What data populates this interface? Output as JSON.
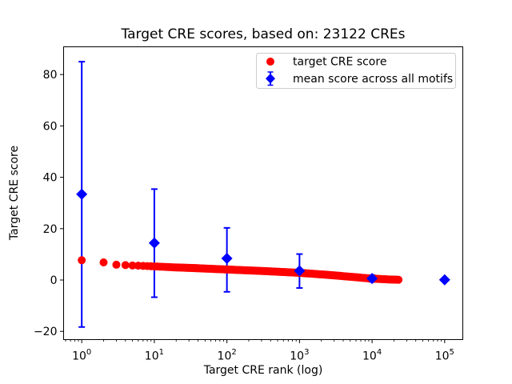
{
  "figure": {
    "title": "Target CRE scores, based on: 23122 CREs",
    "xlabel": "Target CRE rank (log)",
    "ylabel": "Target CRE score",
    "background_color": "#ffffff",
    "frame_color": "#000000"
  },
  "legend": {
    "position": "upper-right",
    "border_color": "#cccccc",
    "items": [
      {
        "label": "target CRE score",
        "marker": "circle",
        "color": "#ff0000"
      },
      {
        "label": "mean score across all motifs",
        "marker": "diamond-with-errorbar",
        "color": "#0000ff"
      }
    ]
  },
  "chart_data": {
    "type": "scatter",
    "title": "Target CRE scores, based on: 23122 CREs",
    "xlabel": "Target CRE rank (log)",
    "ylabel": "Target CRE score",
    "x_scale": "log",
    "grid": false,
    "x_ticks_exponents": [
      0,
      1,
      2,
      3,
      4,
      5
    ],
    "y_ticks": [
      -20,
      0,
      20,
      40,
      60,
      80
    ],
    "xlim_log10": [
      -0.25,
      5.25
    ],
    "ylim": [
      -23.2,
      90.8
    ],
    "series": [
      {
        "name": "target CRE score",
        "type": "scatter",
        "color": "#ff0000",
        "marker": "circle",
        "n_points": 23122,
        "sample_ranks": [
          1,
          2,
          3,
          4,
          5,
          7,
          10,
          18,
          32,
          56,
          100,
          178,
          316,
          562,
          1000,
          1778,
          3162,
          5623,
          10000,
          17783,
          23122
        ],
        "sample_scores": [
          7.7,
          6.85,
          5.95,
          5.8,
          5.65,
          5.5,
          5.3,
          4.95,
          4.7,
          4.4,
          4.1,
          3.8,
          3.5,
          3.15,
          2.8,
          2.3,
          1.75,
          1.15,
          0.55,
          0.2,
          0.1
        ]
      },
      {
        "name": "mean score across all motifs",
        "type": "errorbar",
        "color": "#0000ff",
        "marker": "diamond",
        "points": [
          {
            "x": 1,
            "y": 33.4,
            "y_upper": 85.0,
            "y_lower": -18.3
          },
          {
            "x": 10,
            "y": 14.4,
            "y_upper": 35.4,
            "y_lower": -6.7
          },
          {
            "x": 100,
            "y": 8.4,
            "y_upper": 20.3,
            "y_lower": -4.6
          },
          {
            "x": 1000,
            "y": 3.6,
            "y_upper": 10.1,
            "y_lower": -3.1
          },
          {
            "x": 10000,
            "y": 0.6,
            "y_upper": 1.9,
            "y_lower": -0.7
          },
          {
            "x": 100000,
            "y": 0.1,
            "y_upper": 0.35,
            "y_lower": -0.15
          }
        ]
      }
    ]
  }
}
